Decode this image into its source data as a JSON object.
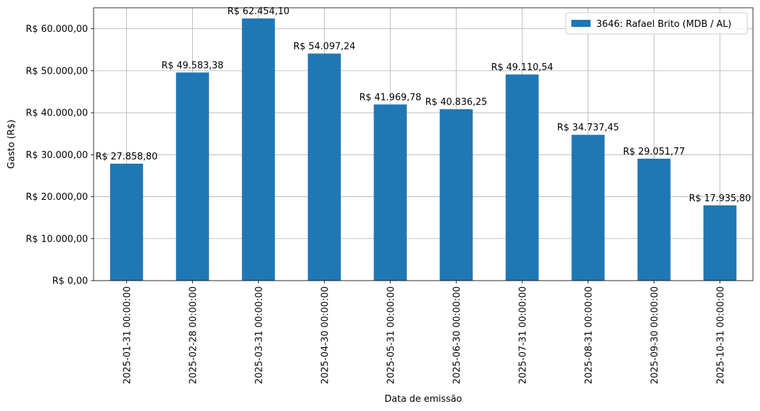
{
  "chart_data": {
    "type": "bar",
    "categories": [
      "2025-01-31 00:00:00",
      "2025-02-28 00:00:00",
      "2025-03-31 00:00:00",
      "2025-04-30 00:00:00",
      "2025-05-31 00:00:00",
      "2025-06-30 00:00:00",
      "2025-07-31 00:00:00",
      "2025-08-31 00:00:00",
      "2025-09-30 00:00:00",
      "2025-10-31 00:00:00"
    ],
    "series": [
      {
        "name": "3646: Rafael Brito (MDB / AL)",
        "values": [
          27858.8,
          49583.38,
          62454.1,
          54097.24,
          41969.78,
          40836.25,
          49110.54,
          34737.45,
          29051.77,
          17935.8
        ],
        "data_labels": [
          "R$ 27.858,80",
          "R$ 49.583,38",
          "R$ 62.454,10",
          "R$ 54.097,24",
          "R$ 41.969,78",
          "R$ 40.836,25",
          "R$ 49.110,54",
          "R$ 34.737,45",
          "R$ 29.051,77",
          "R$ 17.935,80"
        ],
        "color": "#1f77b4"
      }
    ],
    "title": "",
    "xlabel": "Data de emissão",
    "ylabel": "Gasto (R$)",
    "ylim": [
      0,
      65000
    ],
    "yticks": [
      0,
      10000,
      20000,
      30000,
      40000,
      50000,
      60000
    ],
    "ytick_labels": [
      "R$ 0,00",
      "R$ 10.000,00",
      "R$ 20.000,00",
      "R$ 30.000,00",
      "R$ 40.000,00",
      "R$ 50.000,00",
      "R$ 60.000,00"
    ],
    "grid": true,
    "legend_position": "top-right"
  }
}
